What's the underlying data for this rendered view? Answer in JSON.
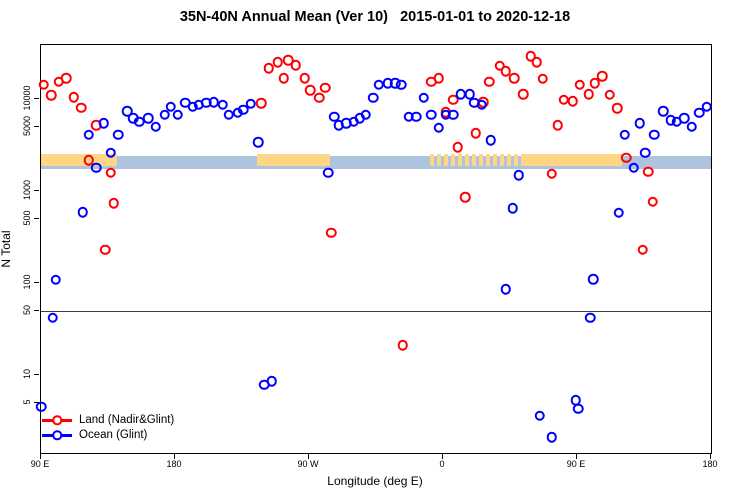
{
  "chart_data": {
    "type": "scatter",
    "title": "35N-40N Annual Mean (Ver 10)   2015-01-01 to 2020-12-18",
    "xlabel": "Longitude (deg E)",
    "ylabel": "N Total",
    "xlim": [
      90,
      540
    ],
    "ylim": [
      1.42,
      38600
    ],
    "yscale": "log",
    "grid": false,
    "legend_position": "bottom-left",
    "x_ticks": [
      {
        "value": 90,
        "label": "90 E"
      },
      {
        "value": 180,
        "label": "180"
      },
      {
        "value": 270,
        "label": "90 W"
      },
      {
        "value": 360,
        "label": "0"
      },
      {
        "value": 450,
        "label": "90 E"
      },
      {
        "value": 540,
        "label": "180"
      }
    ],
    "y_ticks": [
      {
        "value": 5,
        "label": "5"
      },
      {
        "value": 10,
        "label": "10"
      },
      {
        "value": 50,
        "label": "50"
      },
      {
        "value": 100,
        "label": "100"
      },
      {
        "value": 500,
        "label": "500"
      },
      {
        "value": 1000,
        "label": "1000"
      },
      {
        "value": 5000,
        "label": "5000"
      },
      {
        "value": 10000,
        "label": "10000"
      }
    ],
    "reference_lines": [
      {
        "name": "n-50-line",
        "value": 50,
        "color": "#3d3d3d"
      }
    ],
    "reference_bands": [
      {
        "name": "ocean-sampling-band",
        "color": "#aec3de",
        "value_range": [
          1750,
          2400
        ],
        "segments": [
          {
            "from": 90,
            "to": 540,
            "style": "solid"
          }
        ]
      },
      {
        "name": "land-sampling-band",
        "color": "#ffd685",
        "value_range": [
          1850,
          2550
        ],
        "segments": [
          {
            "from": 90,
            "to": 141,
            "style": "solid"
          },
          {
            "from": 235,
            "to": 284,
            "style": "solid"
          },
          {
            "from": 351,
            "to": 414,
            "style": "mixed"
          },
          {
            "from": 414,
            "to": 480,
            "style": "solid"
          }
        ]
      }
    ],
    "series": [
      {
        "name": "Land (Nadir&Glint)",
        "color": "#ff0000",
        "marker": "open-circle",
        "points": [
          [
            92,
            14200
          ],
          [
            97,
            11000
          ],
          [
            102,
            15300
          ],
          [
            107,
            16900
          ],
          [
            112,
            10500
          ],
          [
            117,
            8000
          ],
          [
            122,
            2170
          ],
          [
            127,
            5200
          ],
          [
            133,
            230
          ],
          [
            137,
            1570
          ],
          [
            139,
            740
          ],
          [
            238,
            9000
          ],
          [
            243,
            21700
          ],
          [
            249,
            25200
          ],
          [
            253,
            16900
          ],
          [
            256,
            26500
          ],
          [
            261,
            23400
          ],
          [
            267,
            16900
          ],
          [
            271,
            12500
          ],
          [
            277,
            10250
          ],
          [
            281,
            13200
          ],
          [
            285,
            350
          ],
          [
            333,
            21
          ],
          [
            352,
            15300
          ],
          [
            357,
            16900
          ],
          [
            362,
            7200
          ],
          [
            367,
            9750
          ],
          [
            370,
            3000
          ],
          [
            375,
            860
          ],
          [
            382,
            4260
          ],
          [
            387,
            9270
          ],
          [
            391,
            15300
          ],
          [
            398,
            22900
          ],
          [
            402,
            20100
          ],
          [
            408,
            16900
          ],
          [
            414,
            11300
          ],
          [
            419,
            29300
          ],
          [
            423,
            25200
          ],
          [
            427,
            16500
          ],
          [
            433,
            1530
          ],
          [
            437,
            5200
          ],
          [
            441,
            9750
          ],
          [
            447,
            9500
          ],
          [
            452,
            14200
          ],
          [
            458,
            11300
          ],
          [
            462,
            14900
          ],
          [
            467,
            17700
          ],
          [
            472,
            11050
          ],
          [
            477,
            7900
          ],
          [
            483,
            2290
          ],
          [
            494,
            230
          ],
          [
            498,
            1610
          ],
          [
            501,
            760
          ]
        ]
      },
      {
        "name": "Ocean (Glint)",
        "color": "#0000ff",
        "marker": "open-circle",
        "points": [
          [
            90,
            4.5
          ],
          [
            98,
            42
          ],
          [
            100,
            108
          ],
          [
            118,
            590
          ],
          [
            122,
            4060
          ],
          [
            127,
            1780
          ],
          [
            132,
            5480
          ],
          [
            137,
            2590
          ],
          [
            142,
            4060
          ],
          [
            148,
            7400
          ],
          [
            152,
            6200
          ],
          [
            156,
            5620
          ],
          [
            162,
            6200
          ],
          [
            167,
            4960
          ],
          [
            173,
            6700
          ],
          [
            177,
            8180
          ],
          [
            182,
            6700
          ],
          [
            187,
            9050
          ],
          [
            192,
            8180
          ],
          [
            196,
            8600
          ],
          [
            201,
            9050
          ],
          [
            206,
            9270
          ],
          [
            212,
            8600
          ],
          [
            216,
            6700
          ],
          [
            222,
            7050
          ],
          [
            226,
            7600
          ],
          [
            231,
            8850
          ],
          [
            236,
            3400
          ],
          [
            240,
            7.8
          ],
          [
            245,
            8.6
          ],
          [
            283,
            1570
          ],
          [
            287,
            6370
          ],
          [
            290,
            5200
          ],
          [
            295,
            5480
          ],
          [
            300,
            5620
          ],
          [
            304,
            6200
          ],
          [
            308,
            6700
          ],
          [
            313,
            10250
          ],
          [
            317,
            14200
          ],
          [
            323,
            14900
          ],
          [
            328,
            14900
          ],
          [
            332,
            14200
          ],
          [
            337,
            6370
          ],
          [
            342,
            6370
          ],
          [
            347,
            10250
          ],
          [
            352,
            6700
          ],
          [
            357,
            4840
          ],
          [
            362,
            6700
          ],
          [
            367,
            6700
          ],
          [
            372,
            11300
          ],
          [
            378,
            11300
          ],
          [
            381,
            9050
          ],
          [
            386,
            8600
          ],
          [
            392,
            3580
          ],
          [
            402,
            86
          ],
          [
            407,
            650
          ],
          [
            411,
            1490
          ],
          [
            425,
            3.6
          ],
          [
            433,
            2.1
          ],
          [
            449,
            5.3
          ],
          [
            451,
            4.3
          ],
          [
            459,
            42
          ],
          [
            461,
            110
          ],
          [
            478,
            577
          ],
          [
            482,
            4060
          ],
          [
            488,
            1780
          ],
          [
            492,
            5480
          ],
          [
            496,
            2590
          ],
          [
            502,
            4060
          ],
          [
            508,
            7400
          ],
          [
            513,
            5900
          ],
          [
            517,
            5620
          ],
          [
            522,
            6200
          ],
          [
            527,
            4960
          ],
          [
            532,
            7050
          ],
          [
            537,
            8180
          ]
        ]
      }
    ]
  }
}
